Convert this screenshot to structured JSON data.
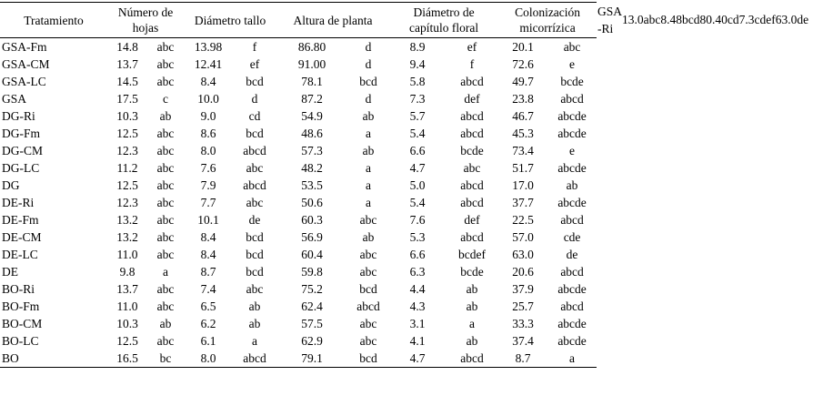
{
  "table": {
    "headers": [
      {
        "line1": "Tratamiento",
        "line2": ""
      },
      {
        "line1": "Número de",
        "line2": "hojas"
      },
      {
        "line1": "Diámetro tallo",
        "line2": ""
      },
      {
        "line1": "Altura de planta",
        "line2": ""
      },
      {
        "line1": "Diámetro de",
        "line2": "capítulo floral"
      },
      {
        "line1": "Colonización",
        "line2": "micorrízica"
      }
    ],
    "rows": [
      {
        "cells": [
          "GSA-Fm",
          "14.8",
          "abc",
          "13.98",
          "f",
          "86.80",
          "d",
          "8.9",
          "ef",
          "20.1",
          "abc"
        ]
      },
      {
        "cells": [
          "GSA-CM",
          "13.7",
          "abc",
          "12.41",
          "ef",
          "91.00",
          "d",
          "9.4",
          "f",
          "72.6",
          "e"
        ]
      },
      {
        "cells": [
          "GSA-LC",
          "14.5",
          "abc",
          "8.4",
          "bcd",
          "78.1",
          "bcd",
          "5.8",
          "abcd",
          "49.7",
          "bcde"
        ]
      },
      {
        "cells": [
          "GSA",
          "17.5",
          "c",
          "10.0",
          "d",
          "87.2",
          "d",
          "7.3",
          "def",
          "23.8",
          "abcd"
        ]
      },
      {
        "cells": [
          "DG-Ri",
          "10.3",
          "ab",
          "9.0",
          "cd",
          "54.9",
          "ab",
          "5.7",
          "abcd",
          "46.7",
          "abcde"
        ]
      },
      {
        "cells": [
          "DG-Fm",
          "12.5",
          "abc",
          "8.6",
          "bcd",
          "48.6",
          "a",
          "5.4",
          "abcd",
          "45.3",
          "abcde"
        ]
      },
      {
        "cells": [
          "DG-CM",
          "12.3",
          "abc",
          "8.0",
          "abcd",
          "57.3",
          "ab",
          "6.6",
          "bcde",
          "73.4",
          "e"
        ]
      },
      {
        "cells": [
          "DG-LC",
          "11.2",
          "abc",
          "7.6",
          "abc",
          "48.2",
          "a",
          "4.7",
          "abc",
          "51.7",
          "abcde"
        ]
      },
      {
        "cells": [
          "DG",
          "12.5",
          "abc",
          "7.9",
          "abcd",
          "53.5",
          "a",
          "5.0",
          "abcd",
          "17.0",
          "ab"
        ]
      },
      {
        "cells": [
          "DE-Ri",
          "12.3",
          "abc",
          "7.7",
          "abc",
          "50.6",
          "a",
          "5.4",
          "abcd",
          "37.7",
          "abcde"
        ]
      },
      {
        "cells": [
          "DE-Fm",
          "13.2",
          "abc",
          "10.1",
          "de",
          "60.3",
          "abc",
          "7.6",
          "def",
          "22.5",
          "abcd"
        ]
      },
      {
        "cells": [
          "DE-CM",
          "13.2",
          "abc",
          "8.4",
          "bcd",
          "56.9",
          "ab",
          "5.3",
          "abcd",
          "57.0",
          "cde"
        ]
      },
      {
        "cells": [
          "DE-LC",
          "11.0",
          "abc",
          "8.4",
          "bcd",
          "60.4",
          "abc",
          "6.6",
          "bcdef",
          "63.0",
          "de"
        ]
      },
      {
        "cells": [
          "DE",
          "9.8",
          "a",
          "8.7",
          "bcd",
          "59.8",
          "abc",
          "6.3",
          "bcde",
          "20.6",
          "abcd"
        ]
      },
      {
        "cells": [
          "BO-Ri",
          "13.7",
          "abc",
          "7.4",
          "abc",
          "75.2",
          "bcd",
          "4.4",
          "ab",
          "37.9",
          "abcde"
        ]
      },
      {
        "cells": [
          "BO-Fm",
          "11.0",
          "abc",
          "6.5",
          "ab",
          "62.4",
          "abcd",
          "4.3",
          "ab",
          "25.7",
          "abcd"
        ]
      },
      {
        "cells": [
          "BO-CM",
          "10.3",
          "ab",
          "6.2",
          "ab",
          "57.5",
          "abc",
          "3.1",
          "a",
          "33.3",
          "abcde"
        ]
      },
      {
        "cells": [
          "BO-LC",
          "12.5",
          "abc",
          "6.1",
          "a",
          "62.9",
          "abc",
          "4.1",
          "ab",
          "37.4",
          "abcde"
        ]
      },
      {
        "cells": [
          "BO",
          "16.5",
          "bc",
          "8.0",
          "abcd",
          "79.1",
          "bcd",
          "4.7",
          "abcd",
          "8.7",
          "a"
        ]
      }
    ]
  },
  "overflow_row": {
    "label_line1": "GSA",
    "label_line2": "-Ri",
    "values_runon": "13.0abc8.48bcd80.40cd7.3cdef63.0de"
  },
  "colors": {
    "text": "#000000",
    "background": "#ffffff",
    "rule": "#000000"
  }
}
